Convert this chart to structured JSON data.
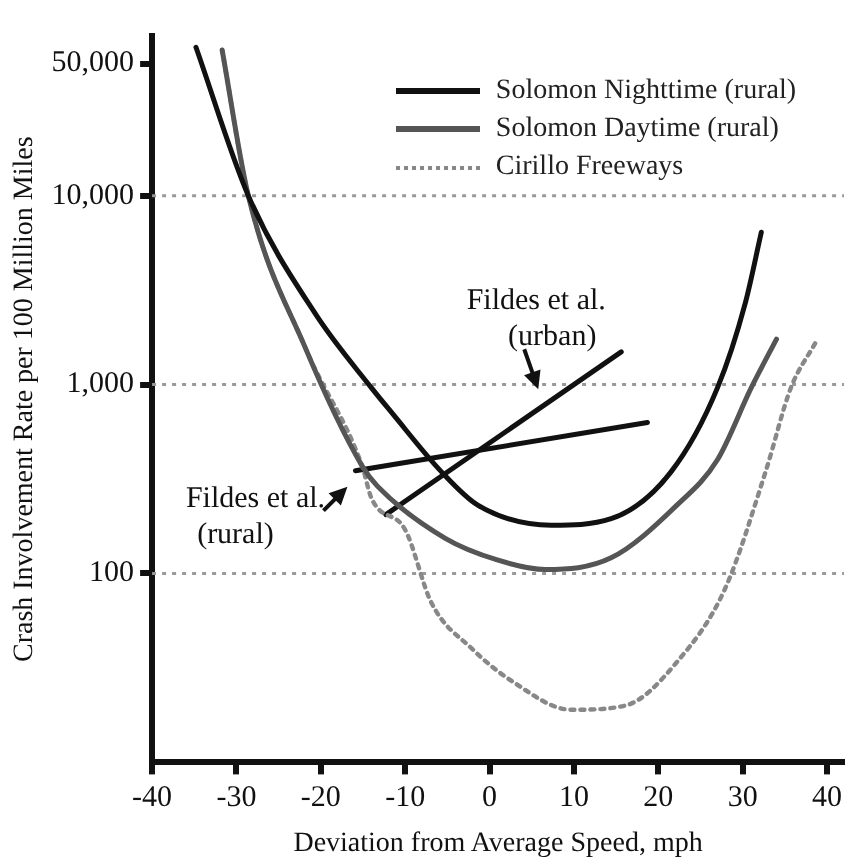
{
  "chart_data": {
    "type": "line",
    "xlabel": "Deviation from Average Speed, mph",
    "ylabel": "Crash Involvement Rate per 100 Million Miles",
    "xlim": [
      -40,
      42
    ],
    "xticks": [
      -40,
      -30,
      -20,
      -10,
      0,
      10,
      20,
      30,
      40
    ],
    "ylim": [
      10,
      70000
    ],
    "log": true,
    "yticks": [
      100,
      {
        "value": 1000,
        "label": "1,000"
      },
      {
        "value": 10000,
        "label": "10,000"
      },
      {
        "value": 50000,
        "label": "50,000"
      }
    ],
    "grid": false,
    "legend": "top right",
    "marker": "none",
    "ref_lines": [
      {
        "axis": "y",
        "value": 100,
        "color": "#999999",
        "line_style": "dotted"
      },
      {
        "axis": "y",
        "value": 1000,
        "color": "#999999",
        "line_style": "dotted"
      },
      {
        "axis": "y",
        "value": 10000,
        "color": "#999999",
        "line_style": "dotted"
      }
    ],
    "series": [
      {
        "name": "Solomon Nighttime (rural)",
        "color": "#111111",
        "line_style": "solid",
        "x": [
          -34.8,
          -28.6,
          -20.6,
          -14,
          -11.6,
          -5.7,
          -1.4,
          7.3,
          14.4,
          21.5,
          27,
          30.3,
          32.2
        ],
        "values": [
          61000,
          10000,
          2350,
          960,
          710,
          345,
          230,
          180,
          195,
          345,
          960,
          2700,
          6400
        ]
      },
      {
        "name": "Solomon Daytime (rural)",
        "color": "#555555",
        "line_style": "solid",
        "x": [
          -31.7,
          -28.6,
          -21.8,
          -15.1,
          -13.3,
          -5.2,
          0.9,
          6.6,
          14.4,
          22.2,
          27,
          31,
          34
        ],
        "values": [
          59000,
          10000,
          1550,
          370,
          290,
          153,
          118,
          105,
          121,
          230,
          400,
          960,
          1740
        ]
      },
      {
        "name": "Cirillo Freeways",
        "color": "#888888",
        "line_style": "dotted",
        "x": [
          -31.7,
          -28.6,
          -21.8,
          -15.1,
          -14,
          -10,
          -6.9,
          -2.1,
          2.6,
          9.7,
          16.1,
          22.2,
          27.9,
          32.7,
          35.7,
          38.6
        ],
        "values": [
          59000,
          10000,
          1550,
          370,
          250,
          170,
          70,
          40,
          27,
          19,
          20,
          34,
          83,
          345,
          960,
          1660
        ]
      },
      {
        "color": "#111111",
        "line_style": "solid",
        "x": [
          -12.3,
          15.6
        ],
        "values": [
          205,
          1490
        ]
      },
      {
        "color": "#111111",
        "line_style": "solid",
        "x": [
          -15.9,
          18.7
        ],
        "values": [
          350,
          630
        ]
      }
    ],
    "annotations": [
      {
        "text": "Fildes et al.\n(urban)",
        "x": 6,
        "y": 740
      },
      {
        "text": "Fildes et al.\n(rural)",
        "x": -15.9,
        "y": 350
      }
    ]
  }
}
